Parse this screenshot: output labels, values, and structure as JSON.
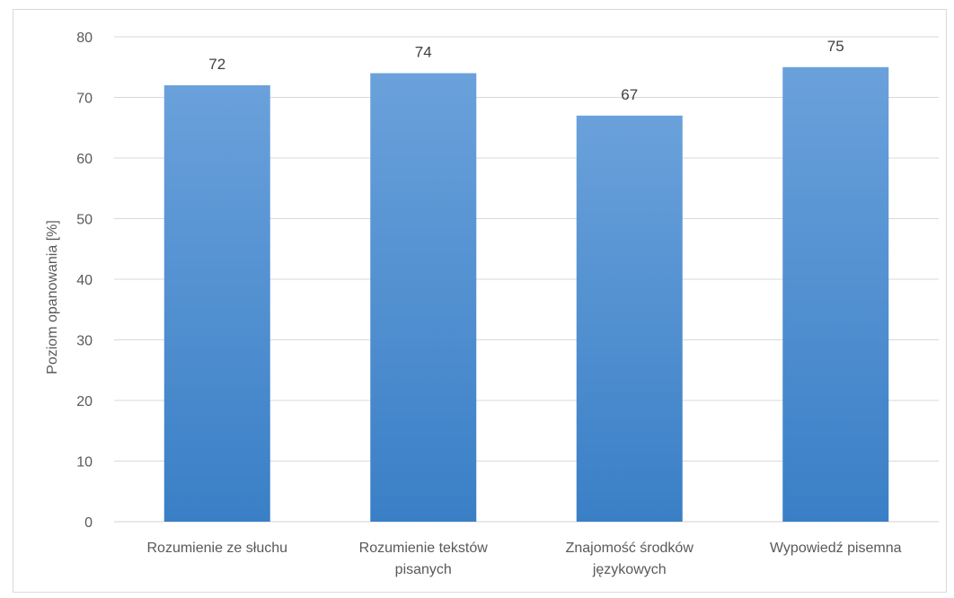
{
  "chart_data": {
    "type": "bar",
    "title": "",
    "xlabel": "",
    "ylabel": "Poziom opanowania [%]",
    "categories": [
      [
        "Rozumienie ze słuchu"
      ],
      [
        "Rozumienie tekstów",
        "pisanych"
      ],
      [
        "Znajomość środków",
        "językowych"
      ],
      [
        "Wypowiedź pisemna"
      ]
    ],
    "values": [
      72,
      74,
      67,
      75
    ],
    "data_labels": [
      "72",
      "74",
      "67",
      "75"
    ],
    "ylim": [
      0,
      80
    ],
    "yticks": [
      0,
      10,
      20,
      30,
      40,
      50,
      60,
      70,
      80
    ],
    "grid": true,
    "legend": "none",
    "colors": {
      "bar_top": "#6aa1db",
      "bar_bottom": "#3a7fc6",
      "grid": "#d9d9d9",
      "text": "#595959"
    }
  }
}
